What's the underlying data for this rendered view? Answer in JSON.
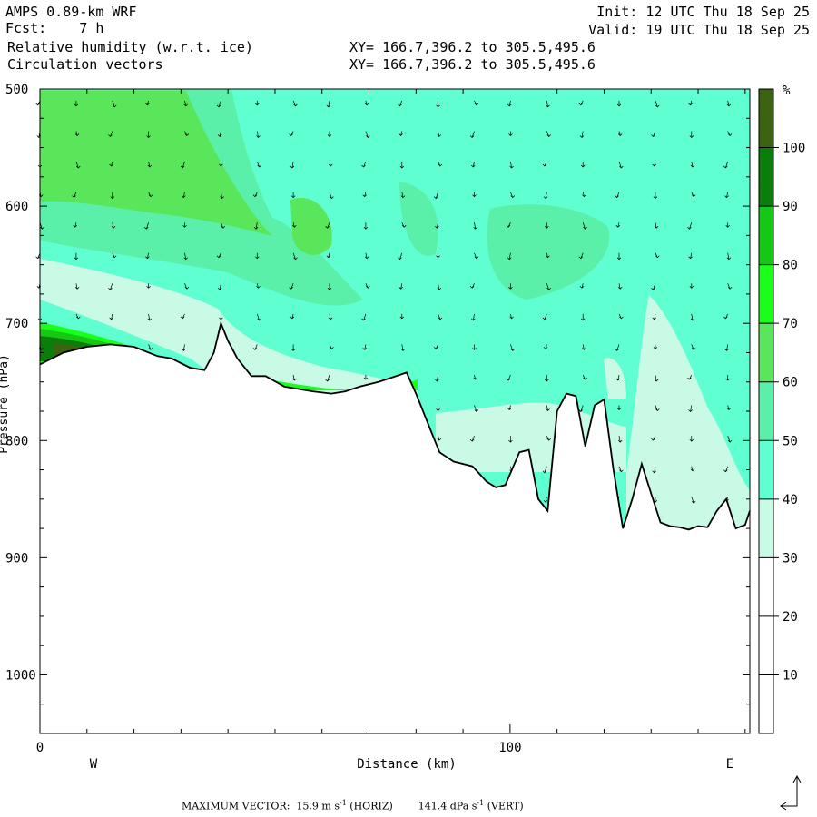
{
  "header": {
    "line1_left": "AMPS 0.89-km WRF",
    "line2_left": "Fcst:    7 h",
    "line3_left": "Relative humidity (w.r.t. ice)",
    "line4_left": "Circulation vectors",
    "line1_right": "Init: 12 UTC Thu 18 Sep 25",
    "line2_right": "Valid: 19 UTC Thu 18 Sep 25",
    "line3_mid": "XY= 166.7,396.2 to 305.5,495.6",
    "line4_mid": "XY= 166.7,396.2 to 305.5,495.6"
  },
  "footer": {
    "max_vector_label": "MAXIMUM VECTOR:",
    "horiz_value": "15.9",
    "horiz_unit": "m s",
    "horiz_tag": "(HORIZ)",
    "vert_value": "141.4",
    "vert_unit": "dPa s",
    "vert_tag": "(VERT)",
    "exponent": "-1"
  },
  "chart_data": {
    "type": "heatmap",
    "title": "Relative humidity (w.r.t. ice)",
    "overlay": "Circulation vectors",
    "xlabel": "Distance (km)",
    "ylabel": "Pressure (hPa)",
    "x_ticks": [
      "0",
      "100"
    ],
    "x_direction_labels": {
      "left": "W",
      "right": "E"
    },
    "y_ticks": [
      "500",
      "600",
      "700",
      "800",
      "900",
      "1000"
    ],
    "xlim": [
      0,
      151
    ],
    "ylim": [
      1050,
      500
    ],
    "colorbar": {
      "unit": "%",
      "tick_labels": [
        "10",
        "20",
        "30",
        "40",
        "50",
        "60",
        "70",
        "80",
        "90",
        "100"
      ],
      "bins": [
        {
          "range": [
            0,
            10
          ],
          "color": "#ffffff"
        },
        {
          "range": [
            10,
            20
          ],
          "color": "#ffffff"
        },
        {
          "range": [
            20,
            30
          ],
          "color": "#ffffff"
        },
        {
          "range": [
            30,
            40
          ],
          "color": "#c8fae6"
        },
        {
          "range": [
            40,
            50
          ],
          "color": "#5fffd2"
        },
        {
          "range": [
            50,
            60
          ],
          "color": "#5af0aa"
        },
        {
          "range": [
            60,
            70
          ],
          "color": "#5ae65a"
        },
        {
          "range": [
            70,
            80
          ],
          "color": "#19ff19"
        },
        {
          "range": [
            80,
            90
          ],
          "color": "#14c814"
        },
        {
          "range": [
            90,
            100
          ],
          "color": "#0a7d0a"
        },
        {
          "range": [
            100,
            110
          ],
          "color": "#3c6410"
        }
      ]
    },
    "terrain_profile_hpa": {
      "x_km": [
        0,
        5,
        10,
        15,
        20,
        25,
        28,
        32,
        35,
        37,
        38.5,
        40,
        42,
        45,
        48,
        52,
        55,
        58,
        62,
        65,
        68,
        72,
        75,
        78,
        80,
        83,
        85,
        88,
        92,
        95,
        97,
        99,
        102,
        104,
        106,
        108,
        110,
        112,
        114,
        116,
        118,
        120,
        122,
        124,
        126,
        128,
        130,
        132,
        134,
        136,
        138,
        140,
        142,
        144,
        146,
        148,
        150,
        151
      ],
      "p_hpa": [
        735,
        725,
        720,
        718,
        720,
        728,
        730,
        738,
        740,
        725,
        700,
        715,
        730,
        745,
        745,
        754,
        756,
        758,
        760,
        758,
        754,
        750,
        746,
        742,
        760,
        790,
        810,
        818,
        822,
        835,
        840,
        838,
        810,
        808,
        850,
        860,
        775,
        760,
        762,
        805,
        770,
        765,
        825,
        875,
        850,
        820,
        845,
        870,
        873,
        874,
        876,
        873,
        874,
        860,
        850,
        875,
        872,
        860
      ]
    },
    "fields": [
      {
        "rh_bin": "50-60",
        "region": "upper-west",
        "x_km": [
          0,
          45
        ],
        "p_hpa": [
          500,
          640
        ]
      },
      {
        "rh_bin": "60-70",
        "region": "upper-west",
        "x_km": [
          3,
          40
        ],
        "p_hpa": [
          510,
          610
        ]
      },
      {
        "rh_bin": "30-40",
        "region": "lower-west",
        "x_km": [
          0,
          40
        ],
        "p_hpa": [
          650,
          730
        ]
      },
      {
        "rh_bin": "70-110",
        "region": "surface-west",
        "x_km": [
          0,
          20
        ],
        "p_hpa": [
          700,
          735
        ]
      },
      {
        "rh_bin": "40-50",
        "region": "central-east",
        "x_km": [
          40,
          151
        ],
        "p_hpa": [
          500,
          880
        ]
      },
      {
        "rh_bin": "50-60",
        "region": "central",
        "x_km": [
          90,
          115
        ],
        "p_hpa": [
          600,
          680
        ]
      },
      {
        "rh_bin": "30-40",
        "region": "eastern lowlands",
        "x_km": [
          90,
          151
        ],
        "p_hpa": [
          730,
          880
        ]
      }
    ]
  }
}
